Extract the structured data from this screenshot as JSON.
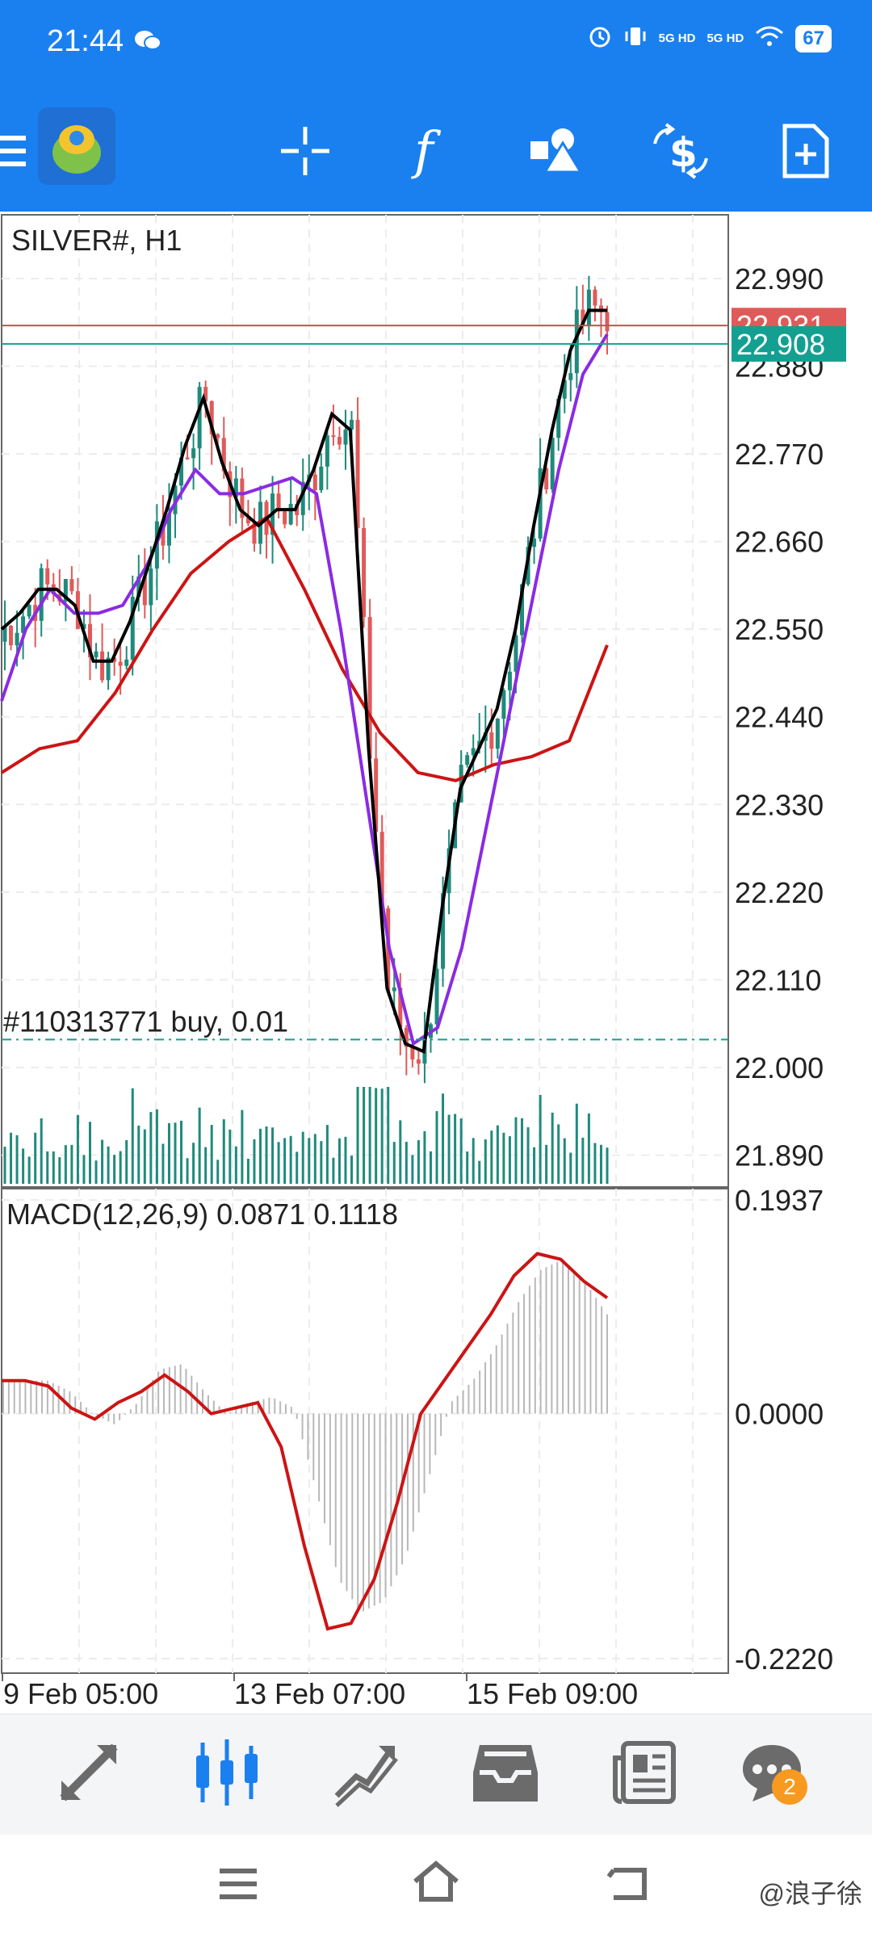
{
  "status_bar": {
    "time": "21:44",
    "network1": "5G HD",
    "network2": "5G HD",
    "battery": "67"
  },
  "toolbar": {
    "icons": [
      "menu-icon",
      "app-logo",
      "crosshair-icon",
      "function-icon",
      "objects-icon",
      "trade-icon",
      "new-order-icon"
    ]
  },
  "chart": {
    "symbol_label": "SILVER#, H1",
    "bid_tag": "22.931",
    "ask_tag": "22.908",
    "order_label": "#110313771 buy, 0.01",
    "price_ticks": [
      "22.990",
      "22.880",
      "22.770",
      "22.660",
      "22.550",
      "22.440",
      "22.330",
      "22.220",
      "22.110",
      "22.000",
      "21.890"
    ],
    "macd_label": "MACD(12,26,9) 0.0871 0.1118",
    "macd_ticks": [
      "0.1937",
      "0.0000",
      "-0.2220"
    ],
    "time_ticks": [
      "9 Feb 05:00",
      "13 Feb 07:00",
      "15 Feb 09:00"
    ],
    "colors": {
      "bull": "#1f8a7c",
      "bear": "#e05a5a",
      "ma_fast": "#000000",
      "ma_mid": "#8a2be2",
      "ma_slow": "#cc1414",
      "bid_line": "#c85050",
      "ask_line": "#14a090",
      "macd_signal": "#cc1414"
    }
  },
  "chart_data": {
    "type": "line",
    "title": "SILVER#, H1",
    "ylim": [
      21.85,
      23.07
    ],
    "order_price": 22.035,
    "bid": 22.931,
    "ask": 22.908,
    "series": [
      {
        "values": [
          22.55,
          22.57,
          22.6,
          22.6,
          22.58,
          22.51,
          22.51,
          22.56,
          22.63,
          22.7,
          22.78,
          22.84,
          22.76,
          22.7,
          22.68,
          22.7,
          22.7,
          22.75,
          22.82,
          22.8,
          22.4,
          22.1,
          22.03,
          22.02,
          22.2,
          22.35,
          22.4,
          22.45,
          22.55,
          22.68,
          22.8,
          22.9,
          22.95,
          22.95
        ]
      },
      {
        "values": [
          22.46,
          22.55,
          22.6,
          22.57,
          22.57,
          22.58,
          22.63,
          22.7,
          22.75,
          22.72,
          22.72,
          22.73,
          22.74,
          22.72,
          22.55,
          22.35,
          22.15,
          22.03,
          22.05,
          22.15,
          22.3,
          22.45,
          22.6,
          22.75,
          22.87,
          22.92
        ]
      },
      {
        "values": [
          22.37,
          22.4,
          22.41,
          22.47,
          22.55,
          22.62,
          22.66,
          22.69,
          22.6,
          22.5,
          22.42,
          22.37,
          22.36,
          22.38,
          22.39,
          22.41,
          22.53
        ]
      }
    ],
    "macd": {
      "ylim": [
        -0.222,
        0.1937
      ],
      "signal": [
        0.03,
        0.03,
        0.025,
        0.005,
        -0.005,
        0.01,
        0.02,
        0.035,
        0.02,
        0.0,
        0.005,
        0.01,
        -0.03,
        -0.12,
        -0.195,
        -0.19,
        -0.15,
        -0.08,
        0.0,
        0.03,
        0.06,
        0.09,
        0.125,
        0.145,
        0.14,
        0.12,
        0.105
      ],
      "histogram": [
        0.03,
        0.03,
        0.03,
        0.02,
        0.0,
        -0.01,
        0.01,
        0.04,
        0.045,
        0.02,
        0.0,
        0.01,
        0.015,
        0.005,
        -0.07,
        -0.15,
        -0.18,
        -0.17,
        -0.13,
        -0.06,
        0.01,
        0.03,
        0.06,
        0.1,
        0.13,
        0.14,
        0.12,
        0.09
      ]
    }
  },
  "bottom_nav": {
    "items": [
      "quotes-icon",
      "chart-icon",
      "trade-icon",
      "history-icon",
      "news-icon",
      "messages-icon"
    ],
    "messages_badge": "2"
  },
  "system_nav": {
    "watermark": "@浪子徐"
  }
}
